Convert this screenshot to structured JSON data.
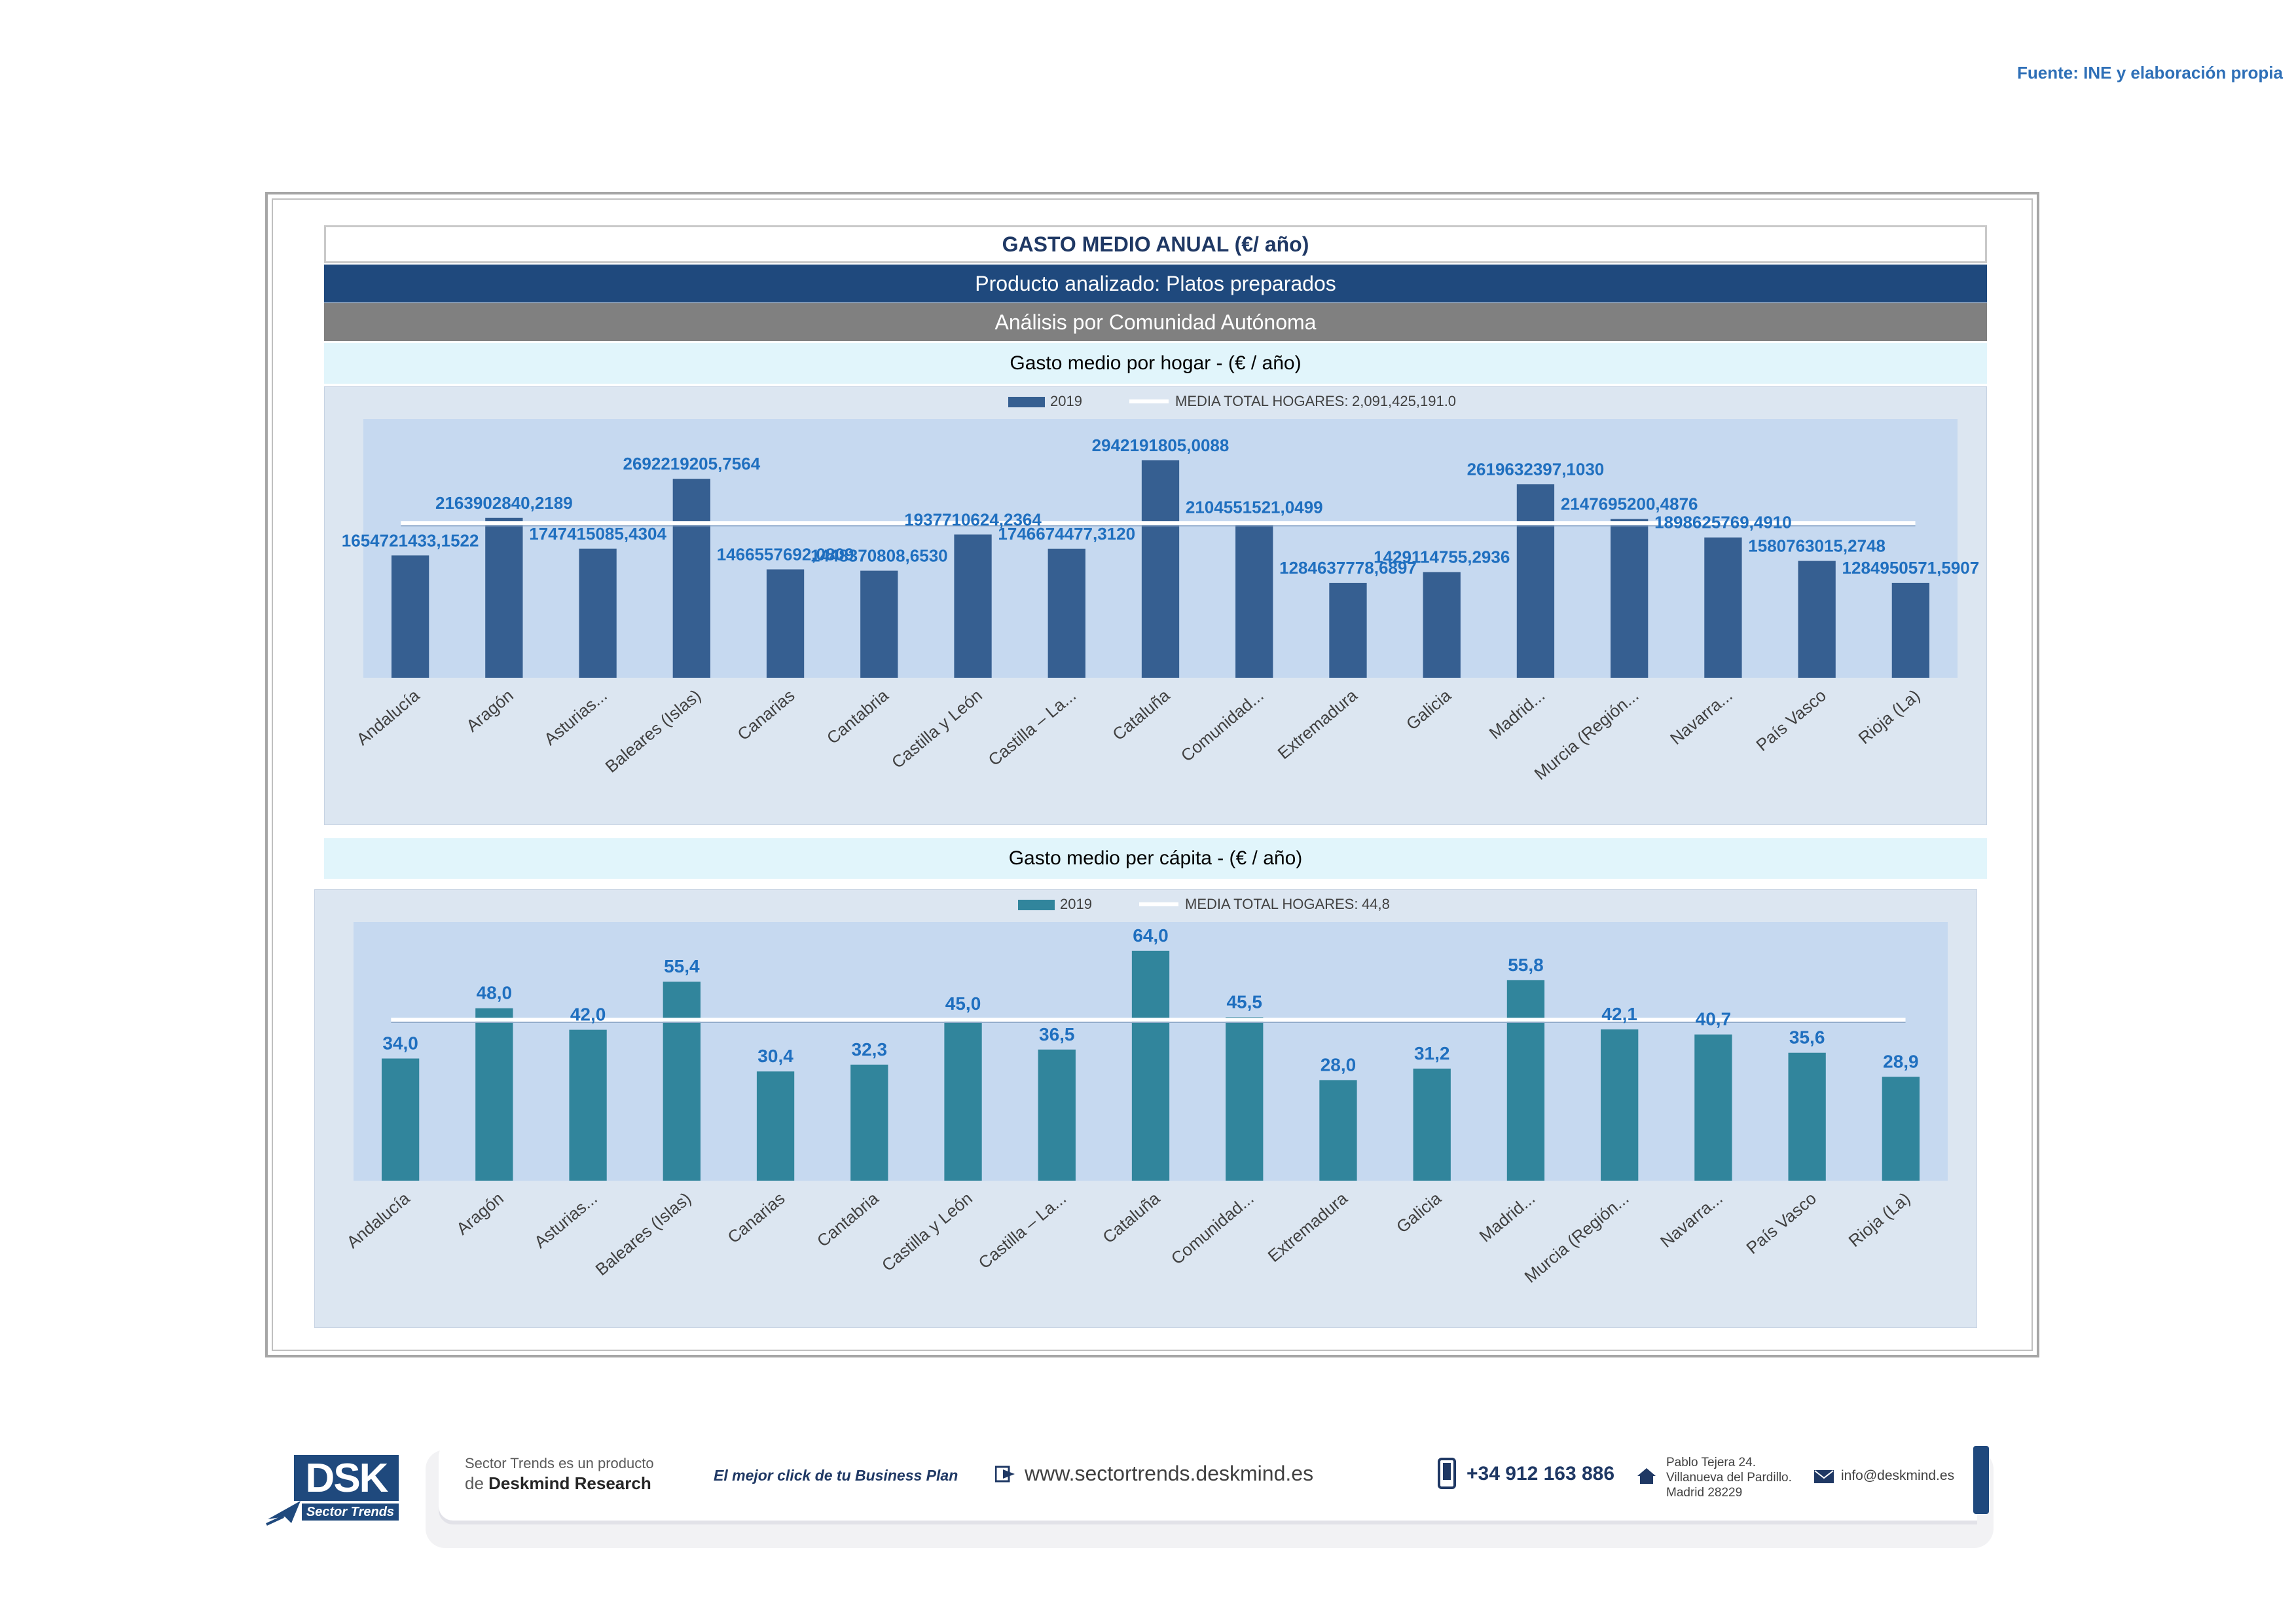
{
  "source": "Fuente: INE y elaboración propia",
  "header": {
    "title": "GASTO MEDIO ANUAL (€/ año)",
    "product": "Producto analizado: Platos preparados",
    "analysis": "Análisis por Comunidad Autónoma"
  },
  "colors": {
    "bar_hogar": "#365f91",
    "bar_capita": "#31859c",
    "mean_line": "#ffffff",
    "label_blue": "#1f6fbf"
  },
  "chart_data": [
    {
      "type": "bar",
      "section_title": "Gasto medio por hogar -  (€ / año)",
      "categories": [
        "Andalucía",
        "Aragón",
        "Asturias...",
        "Baleares (Islas)",
        "Canarias",
        "Cantabria",
        "Castilla y León",
        "Castilla – La...",
        "Cataluña",
        "Comunidad...",
        "Extremadura",
        "Galicia",
        "Madrid...",
        "Murcia (Región...",
        "Navarra...",
        "País Vasco",
        "Rioja (La)"
      ],
      "series": [
        {
          "name": "2019",
          "values": [
            1654721433.1522,
            2163902840.2189,
            1747415085.4304,
            2692219205.7564,
            1466557692.0809,
            1448370808.653,
            1937710624.2364,
            1746674477.312,
            2942191805.0088,
            2104551521.0499,
            1284637778.6897,
            1429114755.2936,
            2619632397.103,
            2147695200.4876,
            1898625769.491,
            1580763015.2748,
            1284950571.5907
          ]
        }
      ],
      "data_labels": [
        "1654721433,1522",
        "2163902840,2189",
        "1747415085,4304",
        "2692219205,7564",
        "1466557692,0809",
        "1448370808,6530",
        "1937710624,2364",
        "1746674477,3120",
        "2942191805,0088",
        "2104551521,0499",
        "1284637778,6897",
        "1429114755,2936",
        "2619632397,1030",
        "2147695200,4876",
        "1898625769,4910",
        "1580763015,2748",
        "1284950571,5907"
      ],
      "mean": {
        "label": "MEDIA TOTAL  HOGARES:",
        "value": 2091425191.0,
        "value_text": "2,091,425,191.0"
      },
      "ylim": [
        0,
        3500000000
      ],
      "legend": "top"
    },
    {
      "type": "bar",
      "section_title": "Gasto medio per cápita -  (€ / año)",
      "categories": [
        "Andalucía",
        "Aragón",
        "Asturias...",
        "Baleares (Islas)",
        "Canarias",
        "Cantabria",
        "Castilla y León",
        "Castilla – La...",
        "Cataluña",
        "Comunidad...",
        "Extremadura",
        "Galicia",
        "Madrid...",
        "Murcia (Región...",
        "Navarra...",
        "País Vasco",
        "Rioja (La)"
      ],
      "series": [
        {
          "name": "2019",
          "values": [
            34.0,
            48.0,
            42.0,
            55.4,
            30.4,
            32.3,
            45.0,
            36.5,
            64.0,
            45.5,
            28.0,
            31.2,
            55.8,
            42.1,
            40.7,
            35.6,
            28.9
          ]
        }
      ],
      "data_labels": [
        "34,0",
        "48,0",
        "42,0",
        "55,4",
        "30,4",
        "32,3",
        "45,0",
        "36,5",
        "64,0",
        "45,5",
        "28,0",
        "31,2",
        "55,8",
        "42,1",
        "40,7",
        "35,6",
        "28,9"
      ],
      "mean": {
        "label": "MEDIA TOTAL  HOGARES:",
        "value": 44.8,
        "value_text": "44,8"
      },
      "ylim": [
        0,
        72
      ],
      "legend": "top"
    }
  ],
  "footer": {
    "line1": "Sector Trends es un producto",
    "line2_prefix": "de ",
    "line2_brand": "Deskmind Research",
    "slogan": "El mejor click de tu Business Plan",
    "website": "www.sectortrends.deskmind.es",
    "phone": "+34 912 163 886",
    "address1": "Pablo Tejera 24.",
    "address2": "Villanueva del Pardillo.",
    "address3": "Madrid 28229",
    "email": "info@deskmind.es",
    "logo_text": "DSK",
    "logo_sub": "Sector Trends"
  }
}
